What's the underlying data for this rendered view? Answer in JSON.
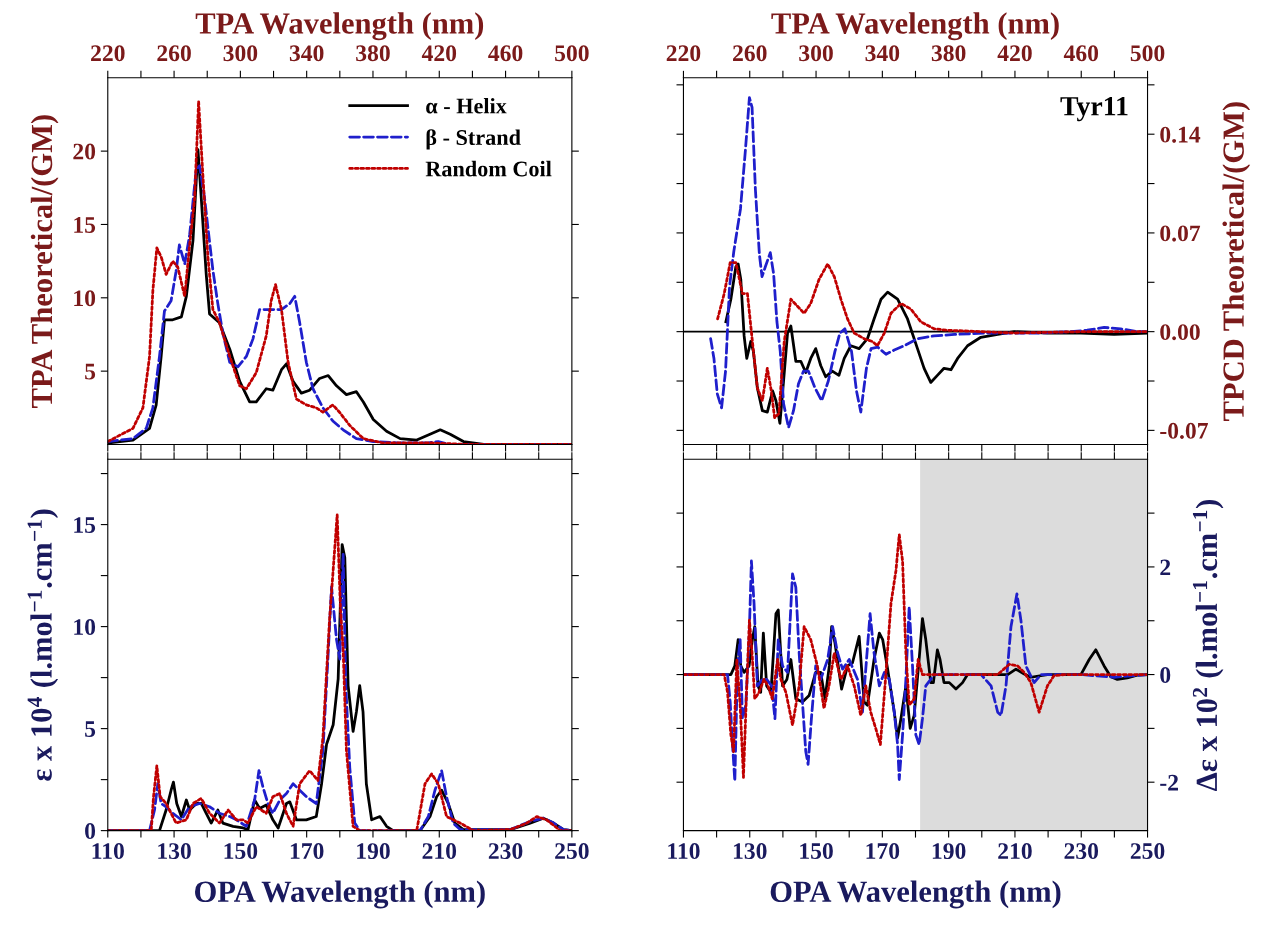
{
  "chart_data": [
    {
      "type": "line",
      "ylabel": "TPA Theoretical/(GM)",
      "xlabel": "TPA Wavelength (nm)",
      "legend": "top right",
      "xlim": [
        220,
        500
      ],
      "xticks": [
        220,
        {
          "value": 240,
          "label": null
        },
        260,
        {
          "value": 280,
          "label": null
        },
        300,
        {
          "value": 320,
          "label": null
        },
        340,
        {
          "value": 360,
          "label": null
        },
        380,
        {
          "value": 400,
          "label": null
        },
        420,
        {
          "value": 440,
          "label": null
        },
        460,
        {
          "value": 480,
          "label": null
        },
        500
      ],
      "ylim": [
        0,
        25
      ],
      "yticks": [
        5,
        10,
        15,
        20
      ],
      "series": [
        {
          "name": "α - Helix",
          "color": "#000000",
          "line_style": "solid",
          "x": [
            220,
            235.2,
            245.2,
            249.2,
            252.2,
            254.2,
            259.2,
            264.4,
            267.4,
            271.4,
            274.4,
            276.4,
            279.4,
            281.4,
            287.4,
            293.6,
            299.6,
            305.6,
            309.6,
            315.6,
            319.6,
            324.8,
            327.8,
            331.8,
            336.8,
            341.8,
            347.8,
            353,
            358,
            364,
            370,
            374.2,
            380.2,
            388.2,
            396.4,
            406.4,
            414.4,
            420.6,
            426.6,
            434.6,
            446.8,
            466.8,
            500
          ],
          "values": [
            0.1,
            0.3,
            1.1,
            2.7,
            6.0,
            8.5,
            8.5,
            8.7,
            10.1,
            13.9,
            20.1,
            16.8,
            11.6,
            8.9,
            8.3,
            6.5,
            4.3,
            2.9,
            2.9,
            3.8,
            3.7,
            5.1,
            5.5,
            4.3,
            3.5,
            3.7,
            4.5,
            4.7,
            4.0,
            3.4,
            3.6,
            2.9,
            1.7,
            0.9,
            0.4,
            0.3,
            0.7,
            1.0,
            0.7,
            0.2,
            0.0,
            0.0,
            0.0
          ]
        },
        {
          "name": "β - Strand",
          "color": "#1f1fcc",
          "line_style": "dashed",
          "x": [
            220,
            235.2,
            243.2,
            247.2,
            251.2,
            254.2,
            258.2,
            261.2,
            263.2,
            266.4,
            269.4,
            273.4,
            275.4,
            278.4,
            280.4,
            283.4,
            286.4,
            289.4,
            293.6,
            298.6,
            303.6,
            307.6,
            311.6,
            315.6,
            319.6,
            324.8,
            329.8,
            332.8,
            335.8,
            339.8,
            343.8,
            349.8,
            355.8,
            362,
            370,
            380.2,
            396.4,
            412.4,
            419.4,
            426.6,
            446.8,
            500
          ],
          "values": [
            0.2,
            0.4,
            1.1,
            2.5,
            6.0,
            9.1,
            9.8,
            11.8,
            13.6,
            12.3,
            14.3,
            18.8,
            19.0,
            16.8,
            14.8,
            11.9,
            9.6,
            7.6,
            5.6,
            5.3,
            6.0,
            7.2,
            9.2,
            9.2,
            9.2,
            9.2,
            9.6,
            10.1,
            8.3,
            5.6,
            3.8,
            2.5,
            1.6,
            1.0,
            0.4,
            0.2,
            0.1,
            0.1,
            0.2,
            0.0,
            0.0,
            0.0
          ]
        },
        {
          "name": "Random Coil",
          "color": "#c00000",
          "line_style": "dotted",
          "x": [
            220,
            235.2,
            241.2,
            245.2,
            247.2,
            249.6,
            252.2,
            255.2,
            259.2,
            262.2,
            266.4,
            269.4,
            272.4,
            274.8,
            277.4,
            280.4,
            283.4,
            287.4,
            293.6,
            299.6,
            303.6,
            309.6,
            315.6,
            318.6,
            321.2,
            324.8,
            328.8,
            333.8,
            339.8,
            345.8,
            349.8,
            355.8,
            359.8,
            366,
            374.2,
            386.2,
            416.4,
            436.6,
            500
          ],
          "values": [
            0.2,
            1.1,
            2.5,
            6.0,
            10.5,
            13.4,
            12.8,
            11.6,
            12.5,
            12.1,
            10.1,
            13.6,
            16.8,
            23.4,
            18.3,
            12.8,
            9.2,
            8.3,
            6.0,
            4.0,
            3.8,
            4.9,
            7.4,
            9.8,
            10.9,
            9.2,
            5.6,
            3.1,
            2.7,
            2.5,
            2.2,
            2.7,
            2.2,
            1.3,
            0.4,
            0.1,
            0.1,
            0.0,
            0.0
          ]
        }
      ]
    },
    {
      "type": "line",
      "ylabel": "TPCD Theoretical/(GM)",
      "xlabel": "TPA Wavelength (nm)",
      "annotations": [
        "Tyr11"
      ],
      "xlim": [
        220,
        500
      ],
      "xticks": [
        220,
        {
          "value": 240,
          "label": null
        },
        260,
        {
          "value": 280,
          "label": null
        },
        300,
        {
          "value": 320,
          "label": null
        },
        340,
        {
          "value": 360,
          "label": null
        },
        380,
        {
          "value": 400,
          "label": null
        },
        420,
        {
          "value": 440,
          "label": null
        },
        460,
        {
          "value": 480,
          "label": null
        },
        500
      ],
      "ylim": [
        -0.08,
        0.18
      ],
      "yticks": [
        {
          "value": 0.175,
          "label": null
        },
        0.14,
        {
          "value": 0.105,
          "label": null
        },
        0.07,
        {
          "value": 0.035,
          "label": null
        },
        {
          "value": 0,
          "label": "0.00"
        },
        {
          "value": -0.035,
          "label": null
        },
        -0.07
      ],
      "ref_lines": [
        {
          "axis": "y",
          "value": 0,
          "color": "#000000"
        }
      ],
      "series": [
        {
          "color": "#000000",
          "line_style": "solid",
          "x": [
            245.6,
            248.6,
            251.6,
            253,
            254.6,
            256.6,
            258.2,
            260.6,
            262.2,
            264.6,
            267.6,
            270.6,
            273.8,
            275.8,
            278.2,
            280.4,
            282.8,
            284.8,
            287.8,
            290.8,
            293.8,
            296.8,
            299.8,
            302.8,
            305.8,
            309.8,
            313.8,
            317,
            321,
            326,
            331,
            335,
            339.2,
            343.2,
            349.2,
            355.2,
            361.2,
            365.2,
            369.2,
            373.2,
            377.2,
            381.4,
            385.4,
            391.4,
            399.4,
            409.6,
            419.6,
            439.6,
            459.8,
            479.8,
            500
          ],
          "values": [
            0.007,
            0.023,
            0.046,
            0.048,
            0.037,
            -0.003,
            -0.019,
            -0.007,
            -0.014,
            -0.04,
            -0.056,
            -0.057,
            -0.042,
            -0.049,
            -0.065,
            -0.035,
            -0.001,
            0.004,
            -0.021,
            -0.021,
            -0.029,
            -0.019,
            -0.012,
            -0.024,
            -0.032,
            -0.028,
            -0.031,
            -0.019,
            -0.01,
            -0.012,
            -0.005,
            0.009,
            0.023,
            0.028,
            0.023,
            0.009,
            -0.012,
            -0.026,
            -0.036,
            -0.031,
            -0.026,
            -0.027,
            -0.019,
            -0.01,
            -0.004,
            -0.002,
            0.0,
            -0.001,
            -0.001,
            -0.002,
            -0.001
          ]
        },
        {
          "color": "#1f1fcc",
          "line_style": "dashed",
          "x": [
            236.4,
            238.4,
            240.4,
            243,
            245.4,
            247.8,
            250.4,
            254.4,
            257.4,
            259.8,
            261.4,
            263.4,
            265.8,
            267.4,
            269.4,
            272.4,
            274.4,
            276.4,
            278.4,
            280.4,
            283.4,
            286.4,
            289.4,
            292.4,
            295.4,
            299.4,
            303.4,
            307.4,
            311.4,
            314.4,
            317.4,
            321.4,
            324.4,
            327,
            330.4,
            333.2,
            337.2,
            342.2,
            347.2,
            353.2,
            361.2,
            371.2,
            383.4,
            403.4,
            433.6,
            453.6,
            463.6,
            473.8,
            483.8,
            493.8,
            500
          ],
          "values": [
            -0.005,
            -0.019,
            -0.044,
            -0.054,
            -0.028,
            0.032,
            0.057,
            0.087,
            0.129,
            0.166,
            0.159,
            0.101,
            0.055,
            0.039,
            0.046,
            0.056,
            0.041,
            0.007,
            -0.014,
            -0.051,
            -0.068,
            -0.056,
            -0.037,
            -0.028,
            -0.028,
            -0.04,
            -0.049,
            -0.035,
            -0.014,
            -0.001,
            0.002,
            -0.014,
            -0.042,
            -0.057,
            -0.026,
            -0.012,
            -0.011,
            -0.016,
            -0.013,
            -0.01,
            -0.005,
            -0.003,
            -0.002,
            -0.001,
            -0.001,
            0.0,
            0.001,
            0.003,
            0.002,
            0.0,
            0.0
          ]
        },
        {
          "color": "#c00000",
          "line_style": "dotted",
          "x": [
            240.6,
            244.6,
            248.2,
            251.6,
            255.6,
            258.6,
            261.6,
            264.6,
            267.6,
            270.6,
            273,
            275,
            277.6,
            280.8,
            284.8,
            288.8,
            292.8,
            296.8,
            301.8,
            307,
            311,
            315,
            319,
            323,
            329,
            334,
            337,
            341.2,
            345.2,
            351.2,
            357.2,
            363.2,
            371.2,
            379.4,
            399.4,
            419.6,
            459.8,
            500
          ],
          "values": [
            0.009,
            0.027,
            0.049,
            0.049,
            0.027,
            0.027,
            -0.007,
            -0.04,
            -0.049,
            -0.026,
            -0.042,
            -0.061,
            -0.058,
            -0.007,
            0.023,
            0.018,
            0.013,
            0.02,
            0.037,
            0.048,
            0.039,
            0.023,
            0.009,
            -0.001,
            -0.005,
            -0.007,
            -0.01,
            -0.001,
            0.013,
            0.02,
            0.016,
            0.007,
            0.002,
            0.001,
            0.0,
            -0.001,
            0.0,
            0.0
          ]
        }
      ]
    },
    {
      "type": "line",
      "xlabel": "OPA Wavelength (nm)",
      "ylabel": "ε x 10$^{4}$ (l.mol$^{−1}$.cm$^{−1}$)",
      "xlim": [
        110,
        250
      ],
      "xticks": [
        110,
        {
          "value": 120,
          "label": null
        },
        130,
        {
          "value": 140,
          "label": null
        },
        150,
        {
          "value": 160,
          "label": null
        },
        170,
        {
          "value": 180,
          "label": null
        },
        190,
        {
          "value": 200,
          "label": null
        },
        210,
        {
          "value": 220,
          "label": null
        },
        230,
        {
          "value": 240,
          "label": null
        },
        250
      ],
      "ylim": [
        0,
        18.2
      ],
      "yticks": [
        0,
        {
          "value": 2.5,
          "label": null
        },
        5,
        {
          "value": 7.5,
          "label": null
        },
        10,
        {
          "value": 12.5,
          "label": null
        },
        15,
        {
          "value": 17.5,
          "label": null
        }
      ],
      "series": [
        {
          "color": "#000000",
          "line_style": "solid",
          "x": [
            110,
            125.6,
            127.6,
            129.1,
            129.8,
            130.8,
            132.2,
            133.7,
            134.7,
            136.7,
            138.2,
            139.7,
            141.2,
            143.2,
            144.7,
            147.8,
            150.8,
            152.3,
            154.3,
            155.8,
            157.8,
            159.8,
            161.4,
            163.9,
            164.9,
            166.9,
            169.9,
            172.9,
            174.5,
            176.0,
            178.0,
            179.5,
            180.7,
            181.5,
            182.5,
            184.0,
            185.0,
            186.0,
            187.0,
            188.0,
            189.6,
            192.1,
            194.1,
            196.1,
            204.2,
            207.2,
            209.2,
            210.7,
            212.7,
            214.7,
            217.3,
            231.4,
            237.4,
            241.4,
            244.5,
            247.5,
            250
          ],
          "values": [
            0,
            0,
            1.01,
            1.98,
            2.38,
            1.33,
            0.69,
            1.5,
            1.01,
            1.33,
            1.33,
            0.85,
            0.37,
            1.01,
            0.37,
            0.21,
            0.13,
            0.05,
            1.5,
            1.09,
            1.25,
            0.53,
            0.13,
            1.33,
            1.41,
            0.53,
            0.53,
            0.69,
            2.3,
            4.23,
            5.19,
            7.44,
            14.02,
            13.38,
            7.11,
            4.86,
            5.82,
            7.11,
            5.82,
            2.3,
            0.53,
            0.69,
            0.21,
            0,
            0,
            0.69,
            1.66,
            1.98,
            1.33,
            0.37,
            0.05,
            0.05,
            0.37,
            0.61,
            0.37,
            0.05,
            0
          ]
        },
        {
          "color": "#1f1fcc",
          "line_style": "dashed",
          "x": [
            110,
            122.6,
            124.1,
            125.1,
            126.1,
            127.6,
            129.6,
            132.2,
            134.7,
            137.7,
            140.7,
            143.7,
            146.8,
            148.8,
            151.8,
            154.3,
            155.6,
            156.8,
            158.3,
            159.8,
            161.9,
            163.9,
            165.9,
            167.9,
            169.9,
            172.9,
            174.9,
            176.5,
            177.5,
            179.0,
            180.0,
            181.0,
            181.8,
            183.0,
            184.5,
            186.0,
            204.2,
            206.7,
            208.7,
            210.7,
            212.2,
            214.2,
            216.3,
            231.4,
            237.4,
            241.4,
            244.5,
            247.5,
            250
          ],
          "values": [
            0,
            0,
            1.01,
            2.3,
            1.33,
            1.17,
            0.85,
            0.53,
            1.17,
            1.33,
            1.17,
            0.85,
            0.69,
            0.53,
            0.21,
            1.5,
            2.94,
            2.14,
            1.33,
            0.85,
            1.5,
            1.82,
            2.3,
            1.98,
            1.66,
            1.33,
            3.91,
            8.73,
            11.95,
            9.37,
            8.41,
            13.54,
            7.11,
            3.09,
            0.37,
            0,
            0,
            0.69,
            1.98,
            2.94,
            1.66,
            0.37,
            0.05,
            0.05,
            0.45,
            0.61,
            0.37,
            0.05,
            0
          ]
        },
        {
          "color": "#c00000",
          "line_style": "dotted",
          "x": [
            110,
            123.1,
            123.8,
            124.8,
            125.8,
            127.6,
            130.6,
            133.7,
            135.7,
            138.2,
            140.7,
            143.7,
            146.3,
            148.8,
            150.8,
            152.3,
            154.8,
            157.8,
            159.8,
            161.9,
            163.9,
            165.9,
            167.9,
            170.9,
            173.4,
            174.9,
            176.9,
            179.2,
            180.2,
            181.0,
            182.0,
            184.0,
            186.0,
            203.2,
            205.7,
            207.7,
            209.7,
            212.2,
            216.3,
            220.3,
            231.4,
            236.4,
            239.4,
            242.4,
            246.5,
            250
          ],
          "values": [
            0,
            0,
            1.66,
            3.18,
            1.66,
            1.33,
            0.37,
            0.53,
            1.33,
            1.58,
            0.85,
            0.37,
            1.01,
            0.53,
            0.53,
            0.37,
            1.17,
            0.85,
            1.66,
            1.82,
            0.85,
            0.21,
            2.3,
            2.94,
            2.46,
            4.55,
            10.34,
            15.48,
            10.82,
            8.89,
            3.91,
            0.21,
            0,
            0,
            2.3,
            2.78,
            2.3,
            0.69,
            0.37,
            0,
            0.05,
            0.37,
            0.69,
            0.53,
            0,
            0
          ]
        }
      ]
    },
    {
      "type": "line",
      "xlabel": "OPA Wavelength (nm)",
      "ylabel": "Δε x 10$^{2}$ (l.mol$^{−1}$.cm$^{−1}$)",
      "xlim": [
        110,
        250
      ],
      "xticks": [
        110,
        {
          "value": 120,
          "label": null
        },
        130,
        {
          "value": 140,
          "label": null
        },
        150,
        {
          "value": 160,
          "label": null
        },
        170,
        {
          "value": 180,
          "label": null
        },
        190,
        {
          "value": 200,
          "label": null
        },
        210,
        {
          "value": 220,
          "label": null
        },
        230,
        {
          "value": 240,
          "label": null
        },
        250
      ],
      "ylim": [
        -2.9,
        4.0
      ],
      "yticks": [
        {
          "value": 3,
          "label": null
        },
        2,
        {
          "value": 1,
          "label": null
        },
        0,
        {
          "value": -1,
          "label": null
        },
        -2
      ],
      "bands": [
        {
          "axis": "x",
          "from": 181.4,
          "to": 250,
          "color": "#dcdcdc"
        }
      ],
      "series": [
        {
          "color": "#000000",
          "line_style": "solid",
          "x": [
            110,
            124.3,
            125.5,
            126.5,
            127.3,
            128.3,
            129.8,
            130.8,
            131.5,
            132.5,
            133.3,
            134.1,
            135.1,
            136.4,
            137.9,
            138.6,
            139.9,
            141.2,
            142.4,
            143.9,
            145.9,
            147.9,
            149.9,
            151.4,
            152.7,
            154.0,
            154.7,
            155.7,
            157.7,
            159.5,
            161.0,
            163.0,
            164.5,
            165.5,
            167.5,
            169.1,
            170.1,
            171.6,
            173.6,
            174.6,
            175.6,
            177.1,
            178.4,
            179.6,
            181.1,
            182.1,
            183.1,
            184.6,
            185.4,
            186.6,
            187.4,
            188.6,
            190.2,
            192.2,
            194.2,
            195.7,
            207.8,
            210.3,
            212.8,
            214.8,
            219.8,
            229.9,
            232.4,
            234.4,
            236.9,
            238.9,
            240.9,
            243.9,
            246.9,
            250
          ],
          "values": [
            0,
            0,
            0.16,
            0.65,
            0.16,
            0.04,
            0.16,
            0.65,
            0.89,
            -0.21,
            -0.33,
            0.77,
            -0.21,
            -0.33,
            1.13,
            1.2,
            -0.21,
            -0.09,
            0.28,
            -0.45,
            -0.51,
            -0.39,
            0.04,
            0.04,
            -0.45,
            0.16,
            0.89,
            0.59,
            -0.27,
            0.16,
            0.22,
            0.71,
            -0.51,
            -0.57,
            0.28,
            0.77,
            0.65,
            0.1,
            -0.7,
            -1.18,
            -0.82,
            -0.21,
            -1.0,
            -0.76,
            0.28,
            1.04,
            0.65,
            -0.15,
            -0.15,
            0.46,
            0.28,
            -0.15,
            -0.15,
            -0.27,
            -0.15,
            0,
            0,
            0.1,
            0.01,
            -0.05,
            0,
            0,
            0.28,
            0.46,
            0.16,
            -0.04,
            -0.09,
            -0.06,
            -0.01,
            0
          ]
        },
        {
          "color": "#1f1fcc",
          "line_style": "dashed",
          "x": [
            110,
            123.3,
            124.1,
            124.8,
            125.5,
            126.3,
            127.1,
            127.8,
            128.8,
            129.8,
            130.5,
            131.3,
            132.3,
            133.8,
            135.1,
            136.6,
            137.6,
            138.6,
            139.9,
            141.4,
            142.9,
            143.9,
            144.9,
            145.9,
            146.9,
            147.6,
            148.6,
            149.9,
            151.4,
            153.5,
            155.0,
            156.5,
            158.0,
            160.0,
            162.5,
            164.0,
            165.0,
            166.3,
            167.5,
            169.1,
            170.6,
            172.1,
            173.6,
            174.6,
            175.1,
            176.1,
            177.1,
            178.1,
            179.1,
            180.1,
            181.1,
            182.1,
            183.1,
            185.7,
            199.8,
            202.8,
            204.8,
            205.8,
            207.3,
            208.8,
            210.6,
            211.8,
            213.3,
            215.8,
            217.9,
            229.9,
            239.9,
            250
          ],
          "values": [
            0,
            0,
            -0.51,
            -1.3,
            -1.98,
            0.16,
            0.65,
            -0.82,
            -0.57,
            0.65,
            2.11,
            1.32,
            -0.21,
            -0.09,
            -0.09,
            -0.21,
            -0.82,
            0.65,
            0.16,
            0.04,
            1.87,
            1.62,
            0.4,
            -0.51,
            -1.43,
            -1.67,
            -0.82,
            0.16,
            -0.09,
            0.28,
            0.89,
            0.4,
            0.1,
            0.28,
            -0.09,
            -0.7,
            0.1,
            1.13,
            0.4,
            -0.21,
            0.04,
            -0.09,
            -0.7,
            -1.3,
            -1.95,
            -1.12,
            -0.09,
            1.26,
            0.16,
            -1.12,
            -1.3,
            -0.82,
            -0.21,
            0,
            0,
            -0.21,
            -0.7,
            -0.76,
            -0.21,
            0.89,
            1.5,
            1.01,
            0.16,
            -0.15,
            0,
            0,
            -0.05,
            0
          ]
        },
        {
          "color": "#c00000",
          "line_style": "dotted",
          "x": [
            110,
            122.3,
            123.3,
            124.3,
            125.1,
            126.1,
            127.1,
            128.1,
            129.1,
            129.9,
            130.7,
            131.5,
            132.8,
            134.3,
            135.5,
            136.8,
            138.4,
            139.4,
            140.9,
            142.9,
            144.9,
            146.4,
            148.4,
            150.4,
            152.4,
            153.9,
            155.5,
            157.5,
            159.5,
            161.5,
            163.5,
            165.0,
            166.5,
            168.0,
            169.4,
            170.8,
            172.6,
            174.1,
            175.1,
            176.1,
            177.1,
            178.1,
            179.6,
            180.8,
            182.1,
            185.7,
            204.8,
            208.3,
            210.8,
            212.8,
            214.8,
            217.3,
            219.8,
            221.8,
            224.8,
            250
          ],
          "values": [
            0,
            0,
            -0.33,
            -1.12,
            -1.43,
            0.28,
            -0.57,
            -1.91,
            -0.21,
            1.01,
            0.4,
            -0.45,
            -0.33,
            -0.09,
            -0.21,
            -0.45,
            0.28,
            -0.09,
            -0.33,
            -0.94,
            -0.21,
            0.89,
            0.65,
            0.16,
            -0.63,
            -0.21,
            0.4,
            -0.09,
            0.16,
            -0.21,
            -0.76,
            -0.21,
            -0.7,
            -1.0,
            -1.3,
            -0.21,
            1.32,
            1.93,
            2.6,
            2.11,
            0.4,
            -0.57,
            -0.45,
            0.28,
            0,
            0,
            0,
            0.19,
            0.16,
            0.04,
            -0.15,
            -0.7,
            -0.21,
            -0.02,
            0,
            0
          ]
        }
      ]
    }
  ]
}
